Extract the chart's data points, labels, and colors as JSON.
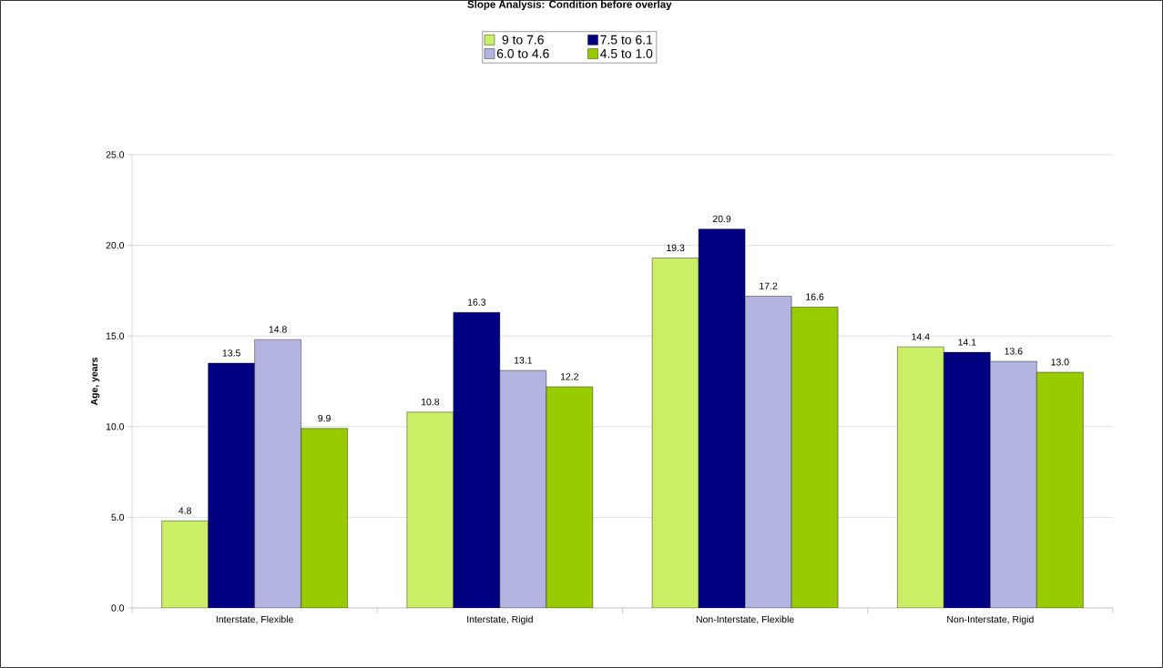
{
  "chart_data": {
    "type": "bar",
    "title": "Slope Analysis: Condition before overlay",
    "ylabel": "Age, years",
    "categories": [
      "Interstate, Flexible",
      "Interstate, Rigid",
      "Non-Interstate, Flexible",
      "Non-Interstate, Rigid"
    ],
    "series": [
      {
        "name": "9 to 7.6",
        "color": "#ccee66",
        "values": [
          4.8,
          10.8,
          19.3,
          14.4
        ],
        "value_labels": [
          "4.8",
          "10.8",
          "19.3",
          "14.4"
        ]
      },
      {
        "name": "7.5 to 6.1",
        "color": "#000080",
        "values": [
          13.5,
          16.3,
          20.9,
          14.1
        ],
        "value_labels": [
          "13.5",
          "16.3",
          "20.9",
          "14.1"
        ]
      },
      {
        "name": "6.0 to 4.6",
        "color": "#b4b4e0",
        "values": [
          14.8,
          13.1,
          17.2,
          13.6
        ],
        "value_labels": [
          "14.8",
          "13.1",
          "17.2",
          "13.6"
        ]
      },
      {
        "name": "4.5 to 1.0",
        "color": "#99cc00",
        "values": [
          9.9,
          12.2,
          16.6,
          13.0
        ],
        "value_labels": [
          "9.9",
          "12.2",
          "16.6",
          "13.0"
        ]
      }
    ],
    "ylim": [
      0,
      25
    ],
    "yticks": [
      {
        "value": 0,
        "label": "0.0"
      },
      {
        "value": 5,
        "label": "5.0"
      },
      {
        "value": 10,
        "label": "10.0"
      },
      {
        "value": 15,
        "label": "15.0"
      },
      {
        "value": 20,
        "label": "20.0"
      },
      {
        "value": 25,
        "label": "25.0"
      }
    ],
    "grid": "y",
    "legend": "top"
  }
}
